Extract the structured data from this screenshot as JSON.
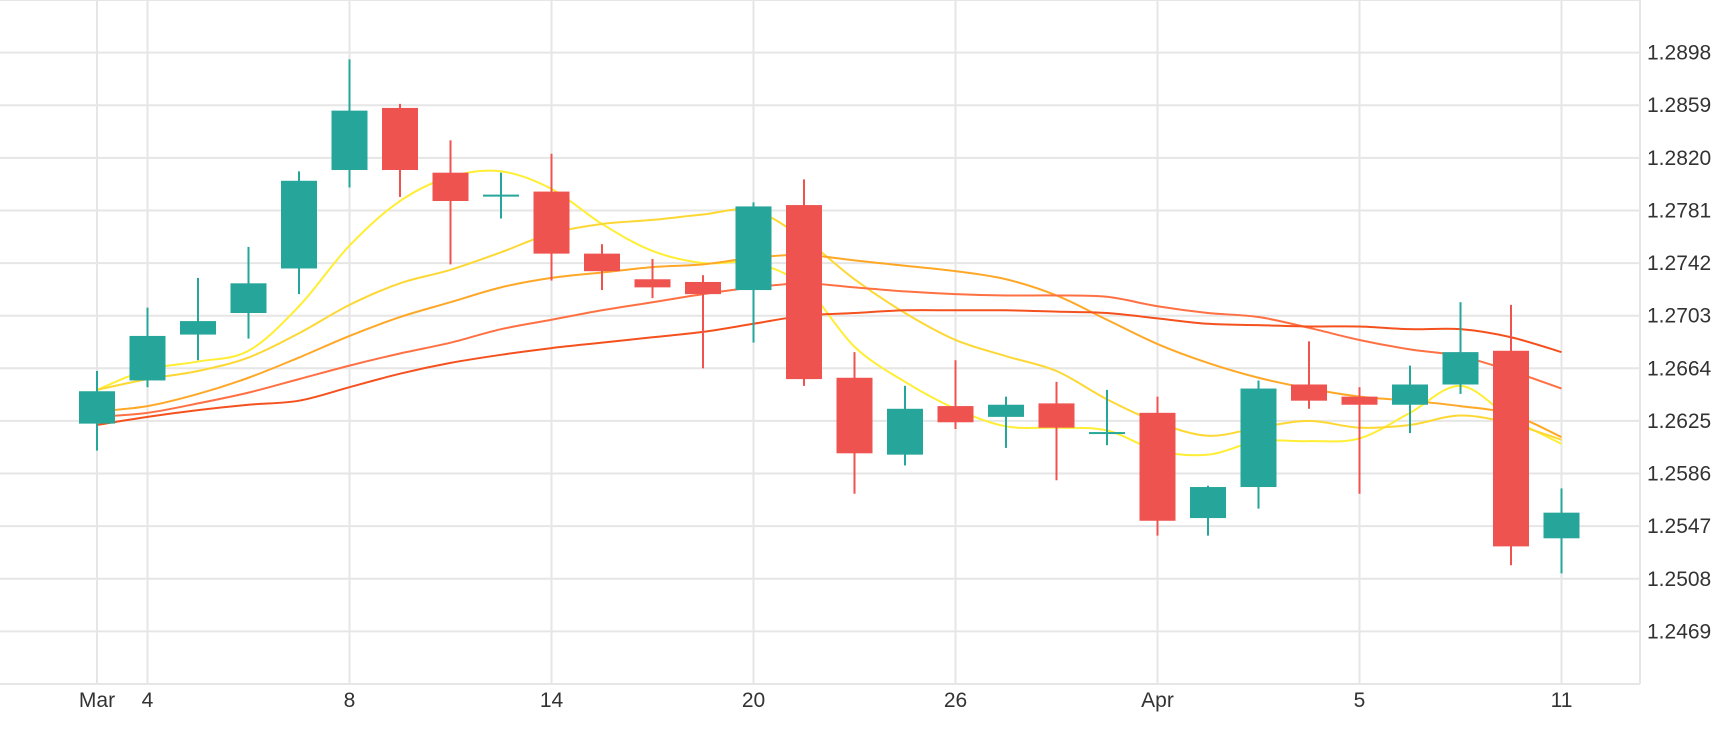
{
  "chart_data": {
    "type": "candlestick",
    "title": "",
    "xlabel": "",
    "ylabel": "",
    "ylim": [
      1.243,
      1.2937
    ],
    "y_ticks": [
      1.2469,
      1.2508,
      1.2547,
      1.2586,
      1.2625,
      1.2664,
      1.2703,
      1.2742,
      1.2781,
      1.282,
      1.2859,
      1.2898
    ],
    "y_tick_labels": [
      "1.2469",
      "1.2508",
      "1.2547",
      "1.2586",
      "1.2625",
      "1.2664",
      "1.2703",
      "1.2742",
      "1.2781",
      "1.2820",
      "1.2859",
      "1.2898"
    ],
    "x_ticks": [
      {
        "index": 0,
        "label": "Mar"
      },
      {
        "index": 1,
        "label": "4"
      },
      {
        "index": 5,
        "label": "8"
      },
      {
        "index": 9,
        "label": "14"
      },
      {
        "index": 13,
        "label": "20"
      },
      {
        "index": 17,
        "label": "26"
      },
      {
        "index": 21,
        "label": "Apr"
      },
      {
        "index": 25,
        "label": "5"
      },
      {
        "index": 29,
        "label": "11"
      }
    ],
    "grid": true,
    "colors": {
      "up": "#26a69a",
      "down": "#ef5350",
      "grid": "#e6e6e6",
      "text": "#333333"
    },
    "candles": [
      {
        "open": 1.2623,
        "high": 1.2662,
        "low": 1.2603,
        "close": 1.2647
      },
      {
        "open": 1.2655,
        "high": 1.2709,
        "low": 1.265,
        "close": 1.2688
      },
      {
        "open": 1.2689,
        "high": 1.2731,
        "low": 1.267,
        "close": 1.2699
      },
      {
        "open": 1.2705,
        "high": 1.2754,
        "low": 1.2686,
        "close": 1.2727
      },
      {
        "open": 1.2738,
        "high": 1.281,
        "low": 1.2719,
        "close": 1.2803
      },
      {
        "open": 1.2811,
        "high": 1.2893,
        "low": 1.2798,
        "close": 1.2855
      },
      {
        "open": 1.2857,
        "high": 1.286,
        "low": 1.2791,
        "close": 1.2811
      },
      {
        "open": 1.2809,
        "high": 1.2833,
        "low": 1.2741,
        "close": 1.2788
      },
      {
        "open": 1.2792,
        "high": 1.2809,
        "low": 1.2775,
        "close": 1.2792
      },
      {
        "open": 1.2795,
        "high": 1.2823,
        "low": 1.2729,
        "close": 1.2749
      },
      {
        "open": 1.2749,
        "high": 1.2756,
        "low": 1.2722,
        "close": 1.2736
      },
      {
        "open": 1.273,
        "high": 1.2745,
        "low": 1.2716,
        "close": 1.2724
      },
      {
        "open": 1.2728,
        "high": 1.2733,
        "low": 1.2664,
        "close": 1.2719
      },
      {
        "open": 1.2722,
        "high": 1.2787,
        "low": 1.2683,
        "close": 1.2784
      },
      {
        "open": 1.2785,
        "high": 1.2804,
        "low": 1.2651,
        "close": 1.2656
      },
      {
        "open": 1.2657,
        "high": 1.2676,
        "low": 1.2571,
        "close": 1.2601
      },
      {
        "open": 1.26,
        "high": 1.2651,
        "low": 1.2592,
        "close": 1.2634
      },
      {
        "open": 1.2636,
        "high": 1.267,
        "low": 1.2619,
        "close": 1.2624
      },
      {
        "open": 1.2628,
        "high": 1.2643,
        "low": 1.2605,
        "close": 1.2637
      },
      {
        "open": 1.2638,
        "high": 1.2654,
        "low": 1.2581,
        "close": 1.262
      },
      {
        "open": 1.2616,
        "high": 1.2648,
        "low": 1.2607,
        "close": 1.2616
      },
      {
        "open": 1.2631,
        "high": 1.2643,
        "low": 1.254,
        "close": 1.2551
      },
      {
        "open": 1.2553,
        "high": 1.2577,
        "low": 1.254,
        "close": 1.2576
      },
      {
        "open": 1.2576,
        "high": 1.2655,
        "low": 1.256,
        "close": 1.2649
      },
      {
        "open": 1.2652,
        "high": 1.2684,
        "low": 1.2634,
        "close": 1.264
      },
      {
        "open": 1.2643,
        "high": 1.265,
        "low": 1.2571,
        "close": 1.2637
      },
      {
        "open": 1.2637,
        "high": 1.2666,
        "low": 1.2616,
        "close": 1.2652
      },
      {
        "open": 1.2652,
        "high": 1.2713,
        "low": 1.2645,
        "close": 1.2676
      },
      {
        "open": 1.2677,
        "high": 1.2711,
        "low": 1.2518,
        "close": 1.2532
      },
      {
        "open": 1.2538,
        "high": 1.2575,
        "low": 1.2512,
        "close": 1.2557
      }
    ],
    "moving_averages": [
      {
        "color": "#ffee33",
        "values": [
          1.2648,
          1.2663,
          1.2669,
          1.2677,
          1.271,
          1.2755,
          1.2788,
          1.2806,
          1.281,
          1.2797,
          1.2771,
          1.2751,
          1.2742,
          1.2742,
          1.2725,
          1.268,
          1.2654,
          1.2634,
          1.2621,
          1.262,
          1.2618,
          1.2603,
          1.26,
          1.261,
          1.261,
          1.2612,
          1.2631,
          1.2651,
          1.2627,
          1.2608
        ]
      },
      {
        "color": "#fdd835",
        "values": [
          1.2648,
          1.2656,
          1.2662,
          1.2672,
          1.269,
          1.2711,
          1.2727,
          1.2737,
          1.275,
          1.2764,
          1.2771,
          1.2774,
          1.2778,
          1.2781,
          1.276,
          1.273,
          1.2705,
          1.2685,
          1.2673,
          1.2662,
          1.2641,
          1.2624,
          1.2614,
          1.262,
          1.2625,
          1.262,
          1.2622,
          1.2629,
          1.2623,
          1.2611
        ]
      },
      {
        "color": "#ffa726",
        "values": [
          1.2632,
          1.2636,
          1.2645,
          1.2657,
          1.2672,
          1.2688,
          1.2702,
          1.2713,
          1.2724,
          1.2731,
          1.2735,
          1.2739,
          1.2741,
          1.2746,
          1.2748,
          1.2744,
          1.274,
          1.2736,
          1.273,
          1.2718,
          1.27,
          1.2682,
          1.2668,
          1.2657,
          1.2649,
          1.2643,
          1.264,
          1.2636,
          1.263,
          1.2613
        ]
      },
      {
        "color": "#ff7043",
        "values": [
          1.2628,
          1.2631,
          1.2638,
          1.2646,
          1.2656,
          1.2666,
          1.2675,
          1.2683,
          1.2693,
          1.27,
          1.2707,
          1.2713,
          1.2719,
          1.2724,
          1.2727,
          1.2724,
          1.2721,
          1.2719,
          1.2718,
          1.2718,
          1.2717,
          1.271,
          1.2705,
          1.2702,
          1.2694,
          1.2685,
          1.2678,
          1.2673,
          1.2662,
          1.2649
        ]
      },
      {
        "color": "#f4511e",
        "values": [
          1.2622,
          1.2628,
          1.2633,
          1.2637,
          1.264,
          1.265,
          1.266,
          1.2668,
          1.2674,
          1.2679,
          1.2683,
          1.2687,
          1.2691,
          1.2697,
          1.2703,
          1.2705,
          1.2707,
          1.2707,
          1.2707,
          1.2706,
          1.2705,
          1.2701,
          1.2697,
          1.2696,
          1.2695,
          1.2695,
          1.2693,
          1.2693,
          1.2687,
          1.2676
        ]
      }
    ]
  }
}
